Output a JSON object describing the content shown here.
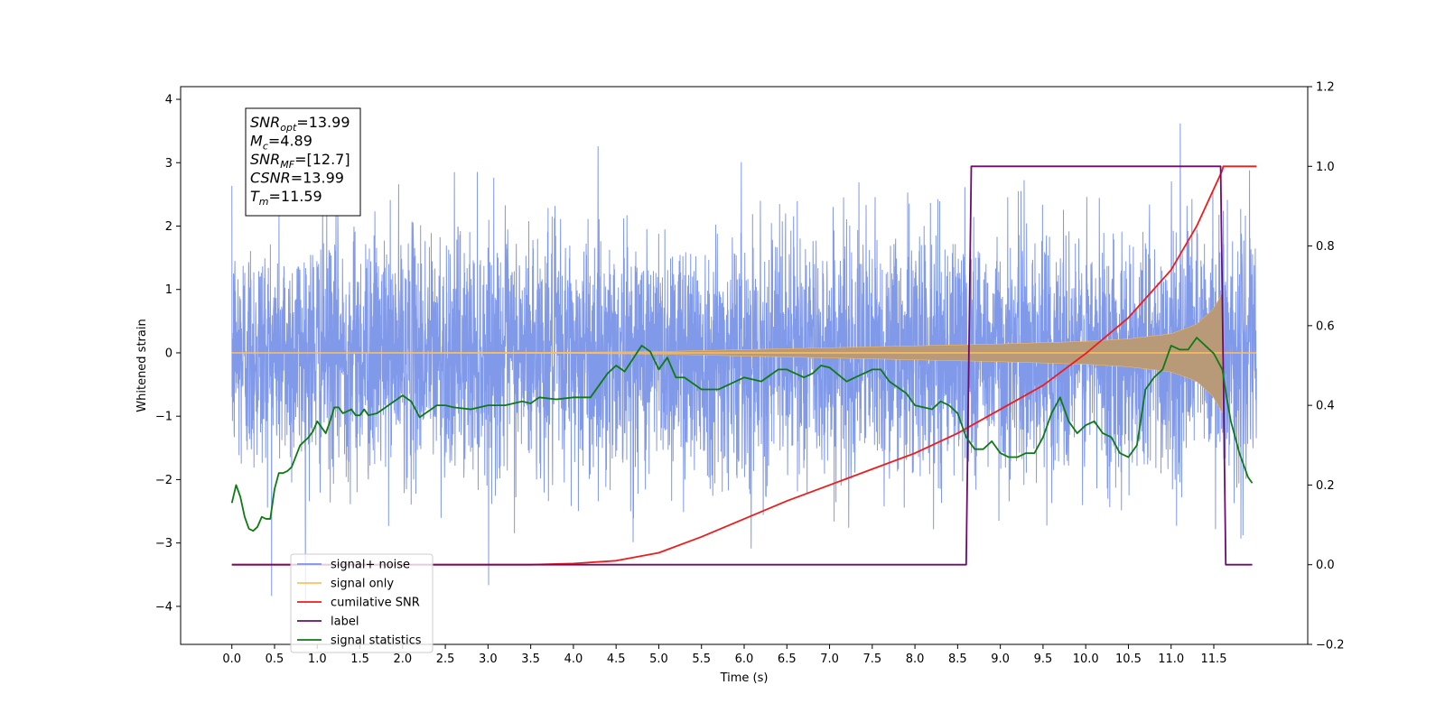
{
  "chart_data": {
    "type": "line",
    "title": "",
    "xlabel": "Time (s)",
    "ylabel": "Whitened strain",
    "xlim": [
      -0.6,
      12.6
    ],
    "ylim": [
      -4.6,
      4.2
    ],
    "ylim_right": [
      -0.2,
      1.2
    ],
    "xticks": [
      "0.0",
      "0.5",
      "1.0",
      "1.5",
      "2.0",
      "2.5",
      "3.0",
      "3.5",
      "4.0",
      "4.5",
      "5.0",
      "5.5",
      "6.0",
      "6.5",
      "7.0",
      "7.5",
      "8.0",
      "8.5",
      "9.0",
      "9.5",
      "10.0",
      "10.5",
      "11.0",
      "11.5"
    ],
    "yticks_left": [
      "4",
      "3",
      "2",
      "1",
      "0",
      "−1",
      "−2",
      "−3",
      "−4"
    ],
    "yticks_right": [
      "1.2",
      "1.0",
      "0.8",
      "0.6",
      "0.4",
      "0.2",
      "0.0",
      "−0.2"
    ],
    "annotation": {
      "lines": [
        {
          "base": "SNR",
          "sub": "opt",
          "value": "=13.99"
        },
        {
          "base": "M",
          "sub": "c",
          "value": "=4.89"
        },
        {
          "base": "SNR",
          "sub": "MF",
          "value": "=[12.7]"
        },
        {
          "base": "CSNR",
          "sub": "",
          "value": "=13.99"
        },
        {
          "base": "T",
          "sub": "m",
          "value": "=11.59"
        }
      ]
    },
    "legend": {
      "placement": "lower-left",
      "entries": [
        {
          "label": "signal+ noise",
          "color": "#7a94e8"
        },
        {
          "label": "signal only",
          "color": "#ffbf5a"
        },
        {
          "label": "cumilative SNR",
          "color": "#ee1c1c"
        },
        {
          "label": "label",
          "color": "#6a0d6e"
        },
        {
          "label": "signal statistics",
          "color": "#0f7a14"
        }
      ]
    },
    "series": [
      {
        "name": "signal+ noise",
        "axis": "left",
        "color": "#7a94e8",
        "t_start": 0.0,
        "t_end": 12.0,
        "noise_sigma": 0.95,
        "peak_max": 3.62,
        "peak_min": -4.1
      },
      {
        "name": "signal only",
        "axis": "left",
        "color": "#ffbf5a",
        "fill_color": "#b89a78",
        "t_start": 0.0,
        "t_end": 11.6,
        "envelope": [
          [
            0.0,
            0.0
          ],
          [
            2.0,
            0.005
          ],
          [
            4.0,
            0.01
          ],
          [
            5.0,
            0.02
          ],
          [
            6.0,
            0.05
          ],
          [
            7.0,
            0.08
          ],
          [
            8.0,
            0.11
          ],
          [
            9.0,
            0.14
          ],
          [
            10.0,
            0.18
          ],
          [
            10.5,
            0.22
          ],
          [
            11.0,
            0.3
          ],
          [
            11.3,
            0.45
          ],
          [
            11.5,
            0.7
          ],
          [
            11.6,
            0.95
          ]
        ]
      },
      {
        "name": "cumilative SNR",
        "axis": "right",
        "color": "#ee1c1c",
        "x": [
          0.0,
          3.5,
          4.0,
          4.5,
          5.0,
          5.5,
          6.0,
          6.5,
          7.0,
          7.5,
          8.0,
          8.5,
          9.0,
          9.5,
          10.0,
          10.5,
          11.0,
          11.3,
          11.6,
          11.61,
          12.0
        ],
        "y": [
          0.0,
          0.0,
          0.003,
          0.01,
          0.03,
          0.07,
          0.115,
          0.16,
          0.2,
          0.24,
          0.28,
          0.33,
          0.39,
          0.45,
          0.53,
          0.62,
          0.74,
          0.85,
          0.99,
          1.0,
          1.0
        ]
      },
      {
        "name": "label",
        "axis": "right",
        "color": "#6a0d6e",
        "x": [
          0.0,
          8.6,
          8.66,
          11.58,
          11.64,
          11.95
        ],
        "y": [
          0.0,
          0.0,
          1.0,
          1.0,
          0.0,
          0.0
        ]
      },
      {
        "name": "signal statistics",
        "axis": "right",
        "color": "#0f7a14",
        "x": [
          0.0,
          0.05,
          0.1,
          0.15,
          0.2,
          0.25,
          0.3,
          0.35,
          0.4,
          0.45,
          0.5,
          0.55,
          0.6,
          0.65,
          0.7,
          0.8,
          0.9,
          0.95,
          1.0,
          1.1,
          1.15,
          1.2,
          1.25,
          1.3,
          1.4,
          1.45,
          1.5,
          1.55,
          1.6,
          1.7,
          1.8,
          1.9,
          2.0,
          2.1,
          2.2,
          2.3,
          2.4,
          2.5,
          2.6,
          2.8,
          3.0,
          3.2,
          3.4,
          3.5,
          3.6,
          3.8,
          4.0,
          4.2,
          4.4,
          4.5,
          4.6,
          4.8,
          4.9,
          5.0,
          5.1,
          5.2,
          5.3,
          5.5,
          5.7,
          5.8,
          6.0,
          6.2,
          6.4,
          6.5,
          6.7,
          6.8,
          6.9,
          7.0,
          7.2,
          7.3,
          7.5,
          7.6,
          7.7,
          7.9,
          8.0,
          8.2,
          8.3,
          8.4,
          8.5,
          8.6,
          8.7,
          8.8,
          8.9,
          9.0,
          9.1,
          9.2,
          9.3,
          9.4,
          9.5,
          9.6,
          9.7,
          9.75,
          9.8,
          9.9,
          10.0,
          10.1,
          10.2,
          10.3,
          10.4,
          10.5,
          10.6,
          10.7,
          10.8,
          10.9,
          11.0,
          11.1,
          11.2,
          11.3,
          11.4,
          11.5,
          11.6,
          11.65,
          11.7,
          11.8,
          11.9,
          11.95
        ],
        "y": [
          0.155,
          0.2,
          0.17,
          0.12,
          0.09,
          0.085,
          0.095,
          0.12,
          0.115,
          0.115,
          0.19,
          0.23,
          0.23,
          0.235,
          0.245,
          0.3,
          0.32,
          0.335,
          0.36,
          0.33,
          0.36,
          0.395,
          0.395,
          0.38,
          0.39,
          0.375,
          0.375,
          0.39,
          0.375,
          0.38,
          0.395,
          0.41,
          0.425,
          0.41,
          0.37,
          0.385,
          0.4,
          0.4,
          0.395,
          0.39,
          0.4,
          0.4,
          0.41,
          0.405,
          0.42,
          0.415,
          0.42,
          0.42,
          0.48,
          0.5,
          0.485,
          0.55,
          0.535,
          0.49,
          0.52,
          0.47,
          0.47,
          0.44,
          0.44,
          0.45,
          0.47,
          0.46,
          0.49,
          0.49,
          0.47,
          0.48,
          0.5,
          0.495,
          0.46,
          0.47,
          0.49,
          0.49,
          0.46,
          0.43,
          0.4,
          0.39,
          0.41,
          0.4,
          0.38,
          0.32,
          0.29,
          0.29,
          0.31,
          0.28,
          0.27,
          0.27,
          0.28,
          0.28,
          0.32,
          0.38,
          0.42,
          0.39,
          0.36,
          0.33,
          0.35,
          0.36,
          0.33,
          0.32,
          0.28,
          0.27,
          0.3,
          0.44,
          0.47,
          0.49,
          0.55,
          0.54,
          0.54,
          0.57,
          0.55,
          0.53,
          0.49,
          0.42,
          0.36,
          0.28,
          0.22,
          0.205
        ]
      }
    ]
  }
}
